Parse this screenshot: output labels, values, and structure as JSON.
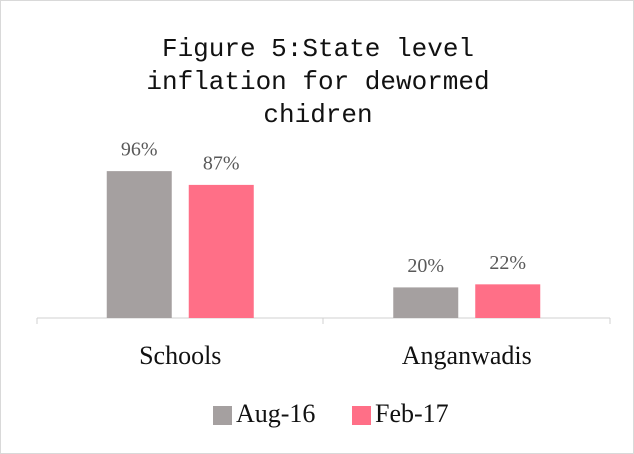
{
  "chart_data": {
    "type": "bar",
    "title": "Figure 5:State level inflation for dewormed chidren",
    "categories": [
      "Schools",
      "Anganwadis"
    ],
    "series": [
      {
        "name": "Aug-16",
        "color": "#a5a0a0",
        "values": [
          96,
          20
        ],
        "value_labels": [
          "96%",
          "20%"
        ]
      },
      {
        "name": "Feb-17",
        "color": "#ff6f87",
        "values": [
          87,
          22
        ],
        "value_labels": [
          "87%",
          "22%"
        ]
      }
    ],
    "legend": "bottom"
  }
}
